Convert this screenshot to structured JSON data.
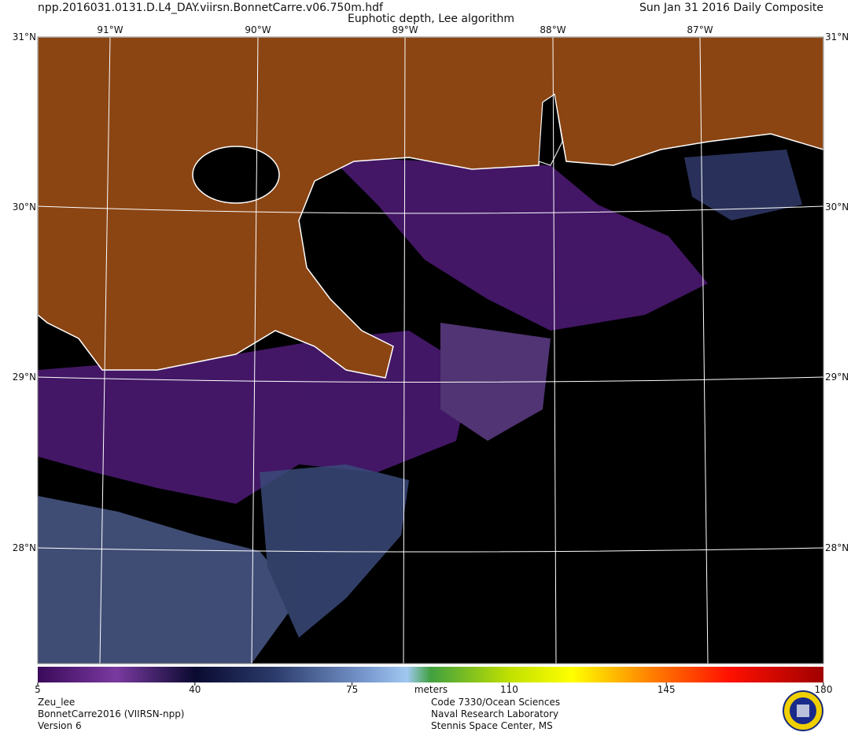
{
  "header": {
    "filename": "npp.2016031.0131.D.L4_DAY.viirsn.BonnetCarre.v06.750m.hdf",
    "title": "Euphotic depth, Lee algorithm",
    "date": "Sun Jan 31 2016 Daily Composite"
  },
  "map": {
    "lon_labels": [
      "91°W",
      "90°W",
      "89°W",
      "88°W",
      "87°W"
    ],
    "lat_labels": [
      "31°N",
      "30°N",
      "29°N",
      "28°N"
    ]
  },
  "colorbar": {
    "ticks": [
      5,
      40,
      75,
      110,
      145,
      180
    ],
    "unit": "meters"
  },
  "footer": {
    "left": [
      "Zeu_lee",
      "BonnetCarre2016 (VIIRSN-npp)",
      "Version 6"
    ],
    "right": [
      "Code 7330/Ocean Sciences",
      "Naval Research Laboratory",
      "Stennis Space Center, MS"
    ]
  }
}
